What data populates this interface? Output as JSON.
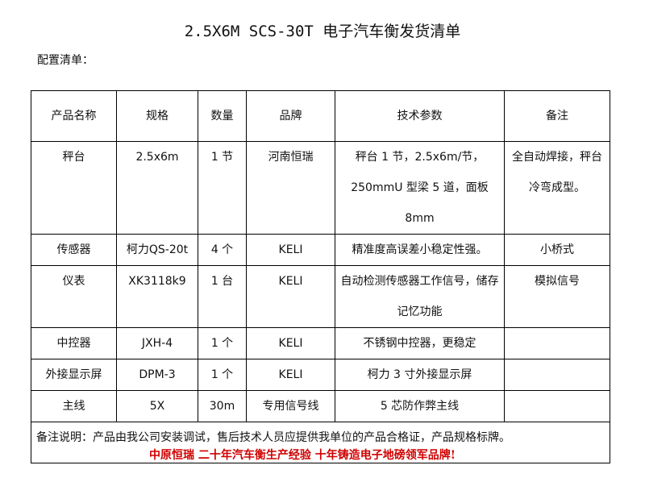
{
  "title": "2.5X6M SCS-30T 电子汽车衡发货清单",
  "subtitle": "配置清单：",
  "headers": [
    "产品名称",
    "规格",
    "数量",
    "品牌",
    "技术参数",
    "备注"
  ],
  "rows": [
    [
      "秤台",
      "2.5x6m",
      "1 节",
      "河南恒瑞",
      "秤台 1 节，2.5x6m/节，250mmU 型梁 5 道，面板 8mm",
      "全自动焊接，秤台冷弯成型。"
    ],
    [
      "传感器",
      "柯力QS-20t",
      "4 个",
      "KELI",
      "精准度高误差小稳定性强。",
      "小桥式"
    ],
    [
      "仪表",
      "XK3118k9",
      "1 台",
      "KELI",
      "自动检测传感器工作信号，储存记忆功能",
      "模拟信号"
    ],
    [
      "中控器",
      "JXH-4",
      "1 个",
      "KELI",
      "不锈钢中控器，更稳定",
      ""
    ],
    [
      "外接显示屏",
      "DPM-3",
      "1 个",
      "KELI",
      "柯力 3 寸外接显示屏",
      ""
    ],
    [
      "主线",
      "5X",
      "30m",
      "专用信号线",
      "5 芯防作弊主线",
      ""
    ]
  ],
  "note": "备注说明：产品由我公司安装调试，售后技术人员应提供我单位的产品合格证，产品规格标牌。",
  "footer": "中原恒瑞 二十年汽车衡生产经验 十年铸造电子地磅领军品牌!",
  "footer_color": "#d00000"
}
